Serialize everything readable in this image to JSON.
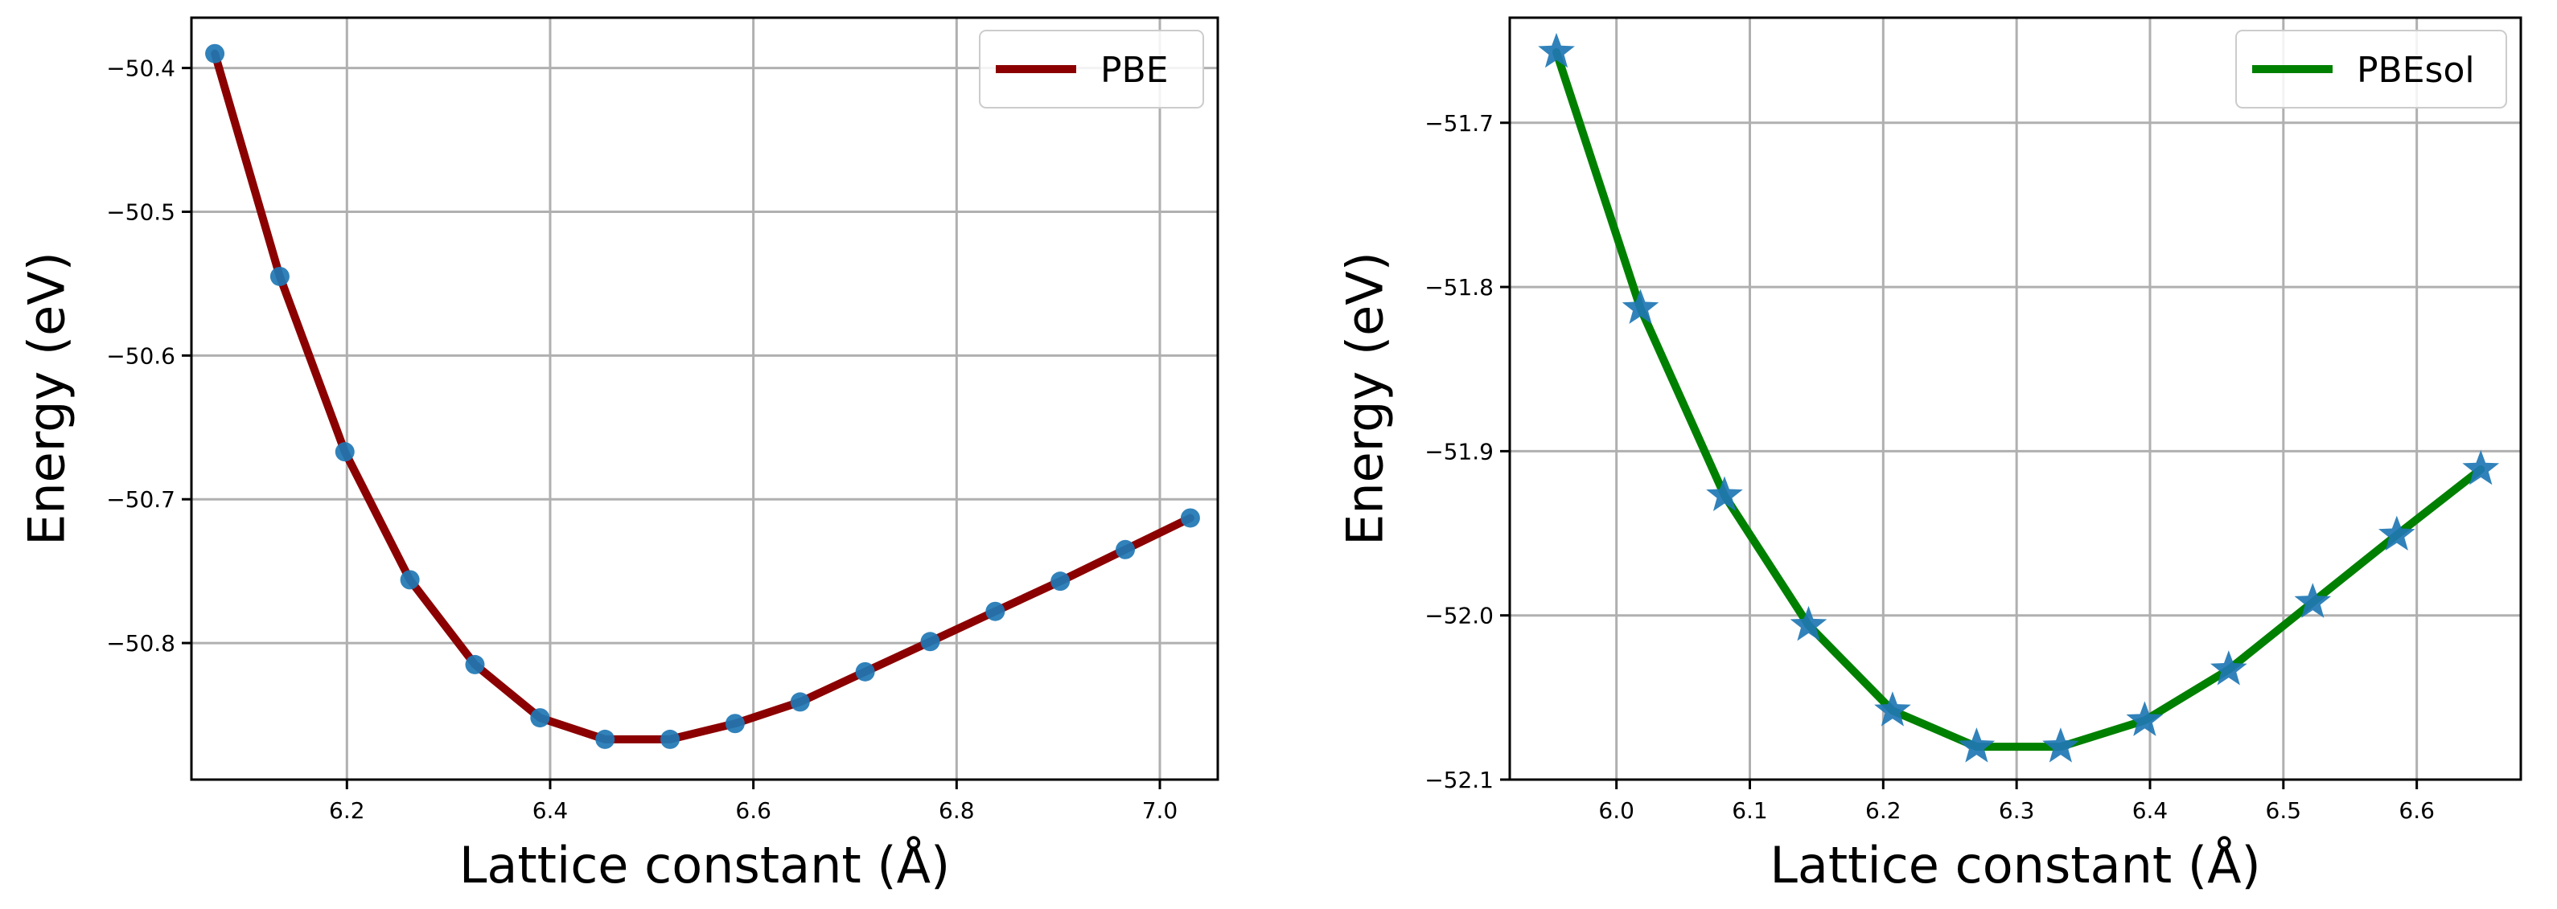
{
  "chart_data": [
    {
      "type": "line",
      "title": "",
      "xlabel": "Lattice constant (Å)",
      "ylabel": "Energy (eV)",
      "xlim": [
        6.047,
        7.057
      ],
      "ylim": [
        -50.895,
        -50.365
      ],
      "xticks": [
        6.2,
        6.4,
        6.6,
        6.8,
        7.0
      ],
      "xtick_labels": [
        "6.2",
        "6.4",
        "6.6",
        "6.8",
        "7.0"
      ],
      "yticks": [
        -50.4,
        -50.5,
        -50.6,
        -50.7,
        -50.8
      ],
      "ytick_labels": [
        "−50.4",
        "−50.5",
        "−50.6",
        "−50.7",
        "−50.8"
      ],
      "grid": true,
      "legend": "top-right",
      "marker": "circle",
      "marker_color": "#1f77b4",
      "series": [
        {
          "name": "PBE",
          "color": "#8b0000",
          "x": [
            6.07,
            6.134,
            6.198,
            6.262,
            6.326,
            6.39,
            6.454,
            6.518,
            6.582,
            6.646,
            6.71,
            6.774,
            6.838,
            6.902,
            6.966,
            7.03
          ],
          "y": [
            -50.39,
            -50.545,
            -50.667,
            -50.756,
            -50.815,
            -50.852,
            -50.867,
            -50.867,
            -50.856,
            -50.841,
            -50.82,
            -50.799,
            -50.778,
            -50.757,
            -50.735,
            -50.713
          ]
        }
      ]
    },
    {
      "type": "line",
      "title": "",
      "xlabel": "Lattice constant (Å)",
      "ylabel": "Energy (eV)",
      "xlim": [
        5.92,
        6.678
      ],
      "ylim": [
        -52.1,
        -51.636
      ],
      "xticks": [
        6.0,
        6.1,
        6.2,
        6.3,
        6.4,
        6.5,
        6.6
      ],
      "xtick_labels": [
        "6.0",
        "6.1",
        "6.2",
        "6.3",
        "6.4",
        "6.5",
        "6.6"
      ],
      "yticks": [
        -51.7,
        -51.8,
        -51.9,
        -52.0,
        -52.1
      ],
      "ytick_labels": [
        "−51.7",
        "−51.8",
        "−51.9",
        "−52.0",
        "−52.1"
      ],
      "grid": true,
      "legend": "top-right",
      "marker": "star",
      "marker_color": "#1f77b4",
      "series": [
        {
          "name": "PBEsol",
          "color": "#008000",
          "x": [
            5.955,
            6.018,
            6.081,
            6.144,
            6.207,
            6.27,
            6.333,
            6.396,
            6.459,
            6.522,
            6.585,
            6.648
          ],
          "y": [
            -51.657,
            -51.813,
            -51.927,
            -52.006,
            -52.058,
            -52.08,
            -52.08,
            -52.064,
            -52.033,
            -51.992,
            -51.951,
            -51.911
          ]
        }
      ]
    }
  ]
}
